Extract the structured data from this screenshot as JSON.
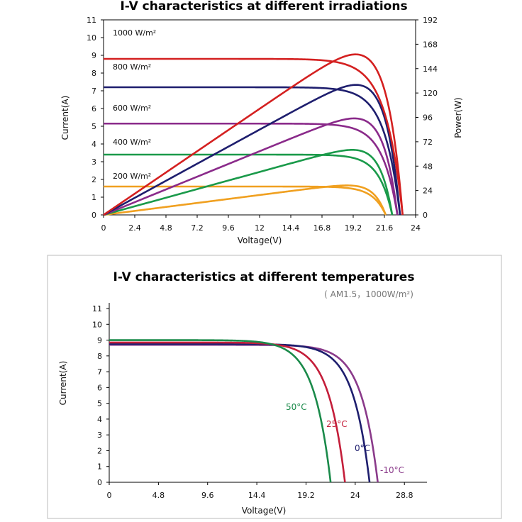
{
  "chart_data": [
    {
      "type": "line",
      "title": "I-V characteristics at different irradiations",
      "xlabel": "Voltage(V)",
      "ylabel": "Current(A)",
      "y2label": "Power(W)",
      "xlim": [
        0,
        24
      ],
      "ylim": [
        0,
        11
      ],
      "y2lim": [
        0,
        192
      ],
      "xticks": [
        "0",
        "2.4",
        "4.8",
        "7.2",
        "9.6",
        "12",
        "14.4",
        "16.8",
        "19.2",
        "21.6",
        "24"
      ],
      "yticks": [
        "0",
        "1",
        "2",
        "3",
        "4",
        "5",
        "6",
        "7",
        "8",
        "9",
        "10",
        "11"
      ],
      "y2ticks": [
        "0",
        "24",
        "48",
        "72",
        "96",
        "120",
        "144",
        "168",
        "192"
      ],
      "grid": false,
      "annotations": [
        "1000 W/m²",
        "800 W/m²",
        "600 W/m²",
        "400 W/m²",
        "200 W/m²"
      ],
      "series": [
        {
          "color": "#d42020",
          "isc": 8.8,
          "voc": 23.0,
          "vmp": 18.8,
          "pmax": 158
        },
        {
          "color": "#1e1e6e",
          "isc": 7.2,
          "voc": 22.8,
          "vmp": 19.0,
          "pmax": 128
        },
        {
          "color": "#8a2a8a",
          "isc": 5.15,
          "voc": 22.6,
          "vmp": 18.9,
          "pmax": 95
        },
        {
          "color": "#1a9a4a",
          "isc": 3.4,
          "voc": 22.2,
          "vmp": 18.9,
          "pmax": 64
        },
        {
          "color": "#f0a020",
          "isc": 1.6,
          "voc": 21.7,
          "vmp": 18.5,
          "pmax": 29
        }
      ]
    },
    {
      "type": "line",
      "title": "I-V characteristics at different temperatures",
      "subtitle": "( AM1.5，1000W/m²)",
      "xlabel": "Voltage(V)",
      "ylabel": "Current(A)",
      "xlim": [
        0,
        31
      ],
      "ylim": [
        0,
        11
      ],
      "xticks": [
        "0",
        "4.8",
        "9.6",
        "14.4",
        "19.2",
        "24",
        "28.8"
      ],
      "yticks": [
        "0",
        "1",
        "2",
        "3",
        "4",
        "5",
        "6",
        "7",
        "8",
        "9",
        "10",
        "11"
      ],
      "grid": false,
      "series": [
        {
          "name": "50°C",
          "color": "#1a8a4a",
          "isc": 9.0,
          "voc": 21.6
        },
        {
          "name": "25°C",
          "color": "#c41e3a",
          "isc": 8.85,
          "voc": 23.0
        },
        {
          "name": "0°C",
          "color": "#1e1e6e",
          "isc": 8.75,
          "voc": 25.4
        },
        {
          "name": "-10°C",
          "color": "#8a3a8a",
          "isc": 8.7,
          "voc": 26.2
        }
      ]
    }
  ]
}
